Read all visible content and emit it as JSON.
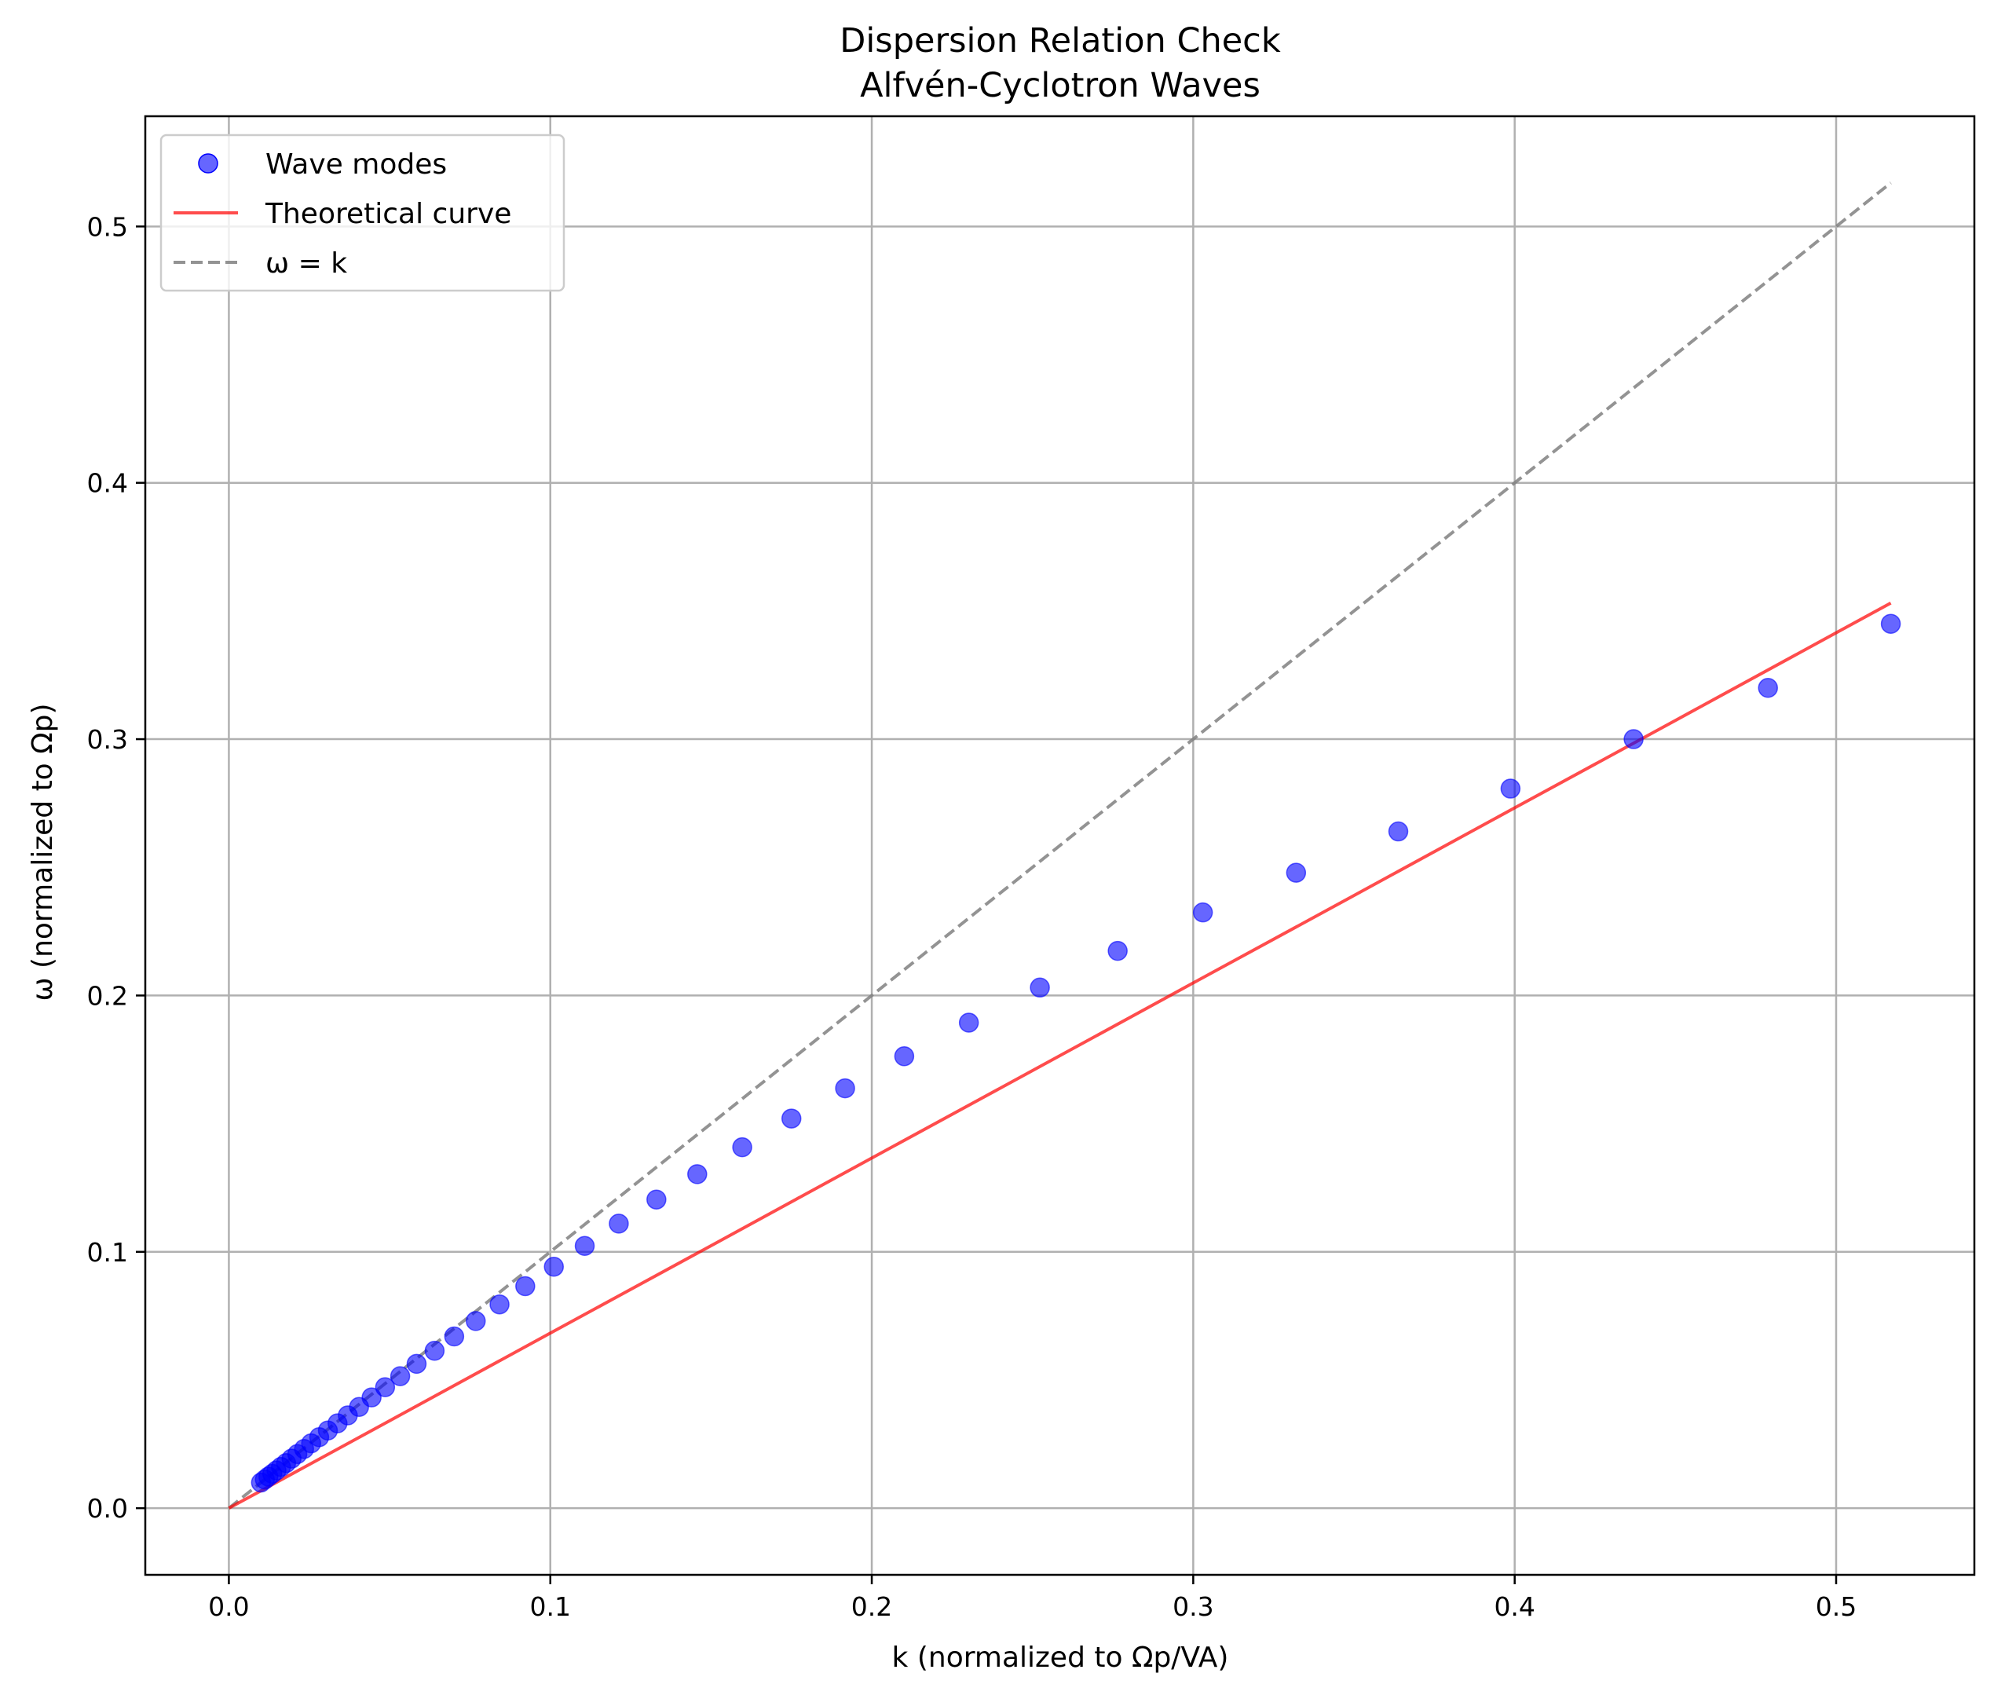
{
  "chart_data": {
    "type": "scatter",
    "title": "Dispersion Relation Check",
    "subtitle": "Alfvén-Cyclotron Waves",
    "xlabel": "k (normalized to Ωp/VA)",
    "ylabel": "ω (normalized to Ωp)",
    "xlim": [
      -0.026,
      0.543
    ],
    "ylim": [
      -0.026,
      0.543
    ],
    "xticks": [
      0.0,
      0.1,
      0.2,
      0.3,
      0.4,
      0.5
    ],
    "yticks": [
      0.0,
      0.1,
      0.2,
      0.3,
      0.4,
      0.5
    ],
    "xtick_labels": [
      "0.0",
      "0.1",
      "0.2",
      "0.3",
      "0.4",
      "0.5"
    ],
    "ytick_labels": [
      "0.0",
      "0.1",
      "0.2",
      "0.3",
      "0.4",
      "0.5"
    ],
    "grid": true,
    "legend_position": "top-left",
    "series": [
      {
        "name": "Wave modes",
        "kind": "scatter",
        "color": "#0000ff",
        "x": [
          0.01,
          0.0112,
          0.0123,
          0.0135,
          0.0148,
          0.0162,
          0.0178,
          0.0195,
          0.0213,
          0.0234,
          0.0256,
          0.0281,
          0.0308,
          0.0338,
          0.037,
          0.0405,
          0.0444,
          0.0486,
          0.0533,
          0.0584,
          0.064,
          0.0701,
          0.0768,
          0.0842,
          0.0922,
          0.1011,
          0.1107,
          0.1213,
          0.133,
          0.1457,
          0.1597,
          0.175,
          0.1917,
          0.2101,
          0.2302,
          0.2523,
          0.2765,
          0.303,
          0.332,
          0.3638,
          0.3987,
          0.437,
          0.4788,
          0.517
        ],
        "y": [
          0.01,
          0.0112,
          0.0123,
          0.0134,
          0.0147,
          0.0161,
          0.0176,
          0.0193,
          0.0211,
          0.0231,
          0.0253,
          0.0277,
          0.0303,
          0.0331,
          0.0362,
          0.0395,
          0.0432,
          0.0472,
          0.0515,
          0.0563,
          0.0614,
          0.067,
          0.073,
          0.0795,
          0.0866,
          0.0942,
          0.1023,
          0.111,
          0.1204,
          0.1303,
          0.1408,
          0.152,
          0.1638,
          0.1763,
          0.1894,
          0.2031,
          0.2174,
          0.2324,
          0.2479,
          0.264,
          0.2807,
          0.3,
          0.32,
          0.345
        ]
      },
      {
        "name": "Theoretical curve",
        "kind": "line",
        "color": "#ff0000",
        "x": [
          0.0,
          0.01,
          0.05,
          0.1,
          0.15,
          0.2,
          0.25,
          0.3,
          0.35,
          0.4,
          0.45,
          0.5,
          0.517
        ],
        "y": [
          0.0,
          0.0068,
          0.0341,
          0.0683,
          0.1024,
          0.1366,
          0.1707,
          0.2049,
          0.239,
          0.2732,
          0.3073,
          0.3415,
          0.3531
        ]
      },
      {
        "name": "ω = k",
        "kind": "dashed-line",
        "color": "#808080",
        "x": [
          0.0,
          0.517
        ],
        "y": [
          0.0,
          0.517
        ]
      }
    ]
  }
}
